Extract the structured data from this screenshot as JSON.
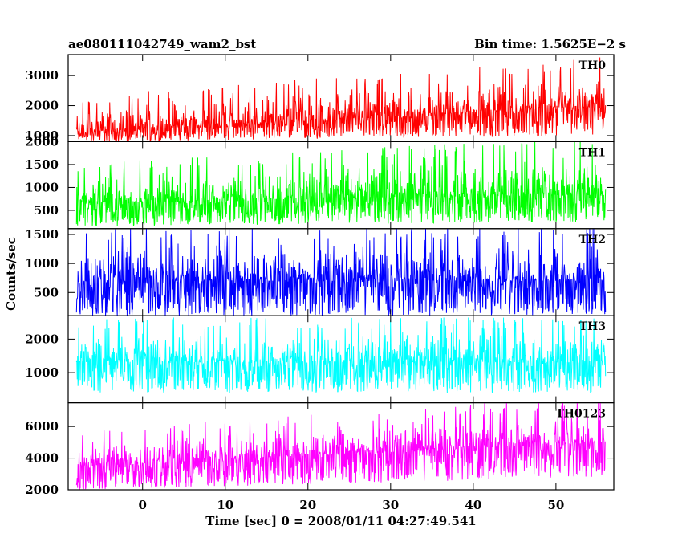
{
  "header": {
    "title": "ae080111042749_wam2_bst",
    "bin_time": "Bin time: 1.5625E−2 s"
  },
  "chart_data": {
    "type": "line",
    "title": "ae080111042749_wam2_bst",
    "xlabel": "Time [sec] 0 = 2008/01/11 04:27:49.541",
    "ylabel": "Counts/sec",
    "xlim": [
      -9,
      57
    ],
    "x_range_data": [
      -8,
      56
    ],
    "x_ticks": [
      0,
      10,
      20,
      30,
      40,
      50
    ],
    "legend_placement": "top-right inside each panel",
    "grid": false,
    "panels": [
      {
        "name": "TH0",
        "color": "#ff0000",
        "ylim": [
          800,
          3700
        ],
        "y_ticks": [
          1000,
          2000,
          3000
        ],
        "envelope": {
          "x": [
            -8,
            56
          ],
          "low_start": 800,
          "low_end": 1000,
          "high_start": 2000,
          "high_end": 3200,
          "mean_start": 1100,
          "mean_end": 2000
        }
      },
      {
        "name": "TH1",
        "color": "#00ff00",
        "ylim": [
          100,
          2000
        ],
        "y_ticks": [
          500,
          1000,
          1500,
          2000
        ],
        "envelope": {
          "x": [
            -8,
            56
          ],
          "low_start": 150,
          "low_end": 250,
          "high_start": 1300,
          "high_end": 1800,
          "mean_start": 650,
          "mean_end": 850
        }
      },
      {
        "name": "TH2",
        "color": "#0000ff",
        "ylim": [
          100,
          1600
        ],
        "y_ticks": [
          500,
          1000,
          1500
        ],
        "envelope": {
          "x": [
            -8,
            56
          ],
          "low_start": 100,
          "low_end": 100,
          "high_start": 1400,
          "high_end": 1400,
          "mean_start": 700,
          "mean_end": 700
        }
      },
      {
        "name": "TH3",
        "color": "#00ffff",
        "ylim": [
          100,
          2700
        ],
        "y_ticks": [
          1000,
          2000
        ],
        "envelope": {
          "x": [
            -8,
            56
          ],
          "low_start": 400,
          "low_end": 400,
          "high_start": 2300,
          "high_end": 2300,
          "mean_start": 1300,
          "mean_end": 1300
        }
      },
      {
        "name": "TH0123",
        "color": "#ff00ff",
        "ylim": [
          2000,
          7500
        ],
        "y_ticks": [
          2000,
          4000,
          6000
        ],
        "envelope": {
          "x": [
            -8,
            56
          ],
          "low_start": 2000,
          "low_end": 2800,
          "high_start": 5200,
          "high_end": 7200,
          "mean_start": 3500,
          "mean_end": 5000
        }
      }
    ]
  }
}
